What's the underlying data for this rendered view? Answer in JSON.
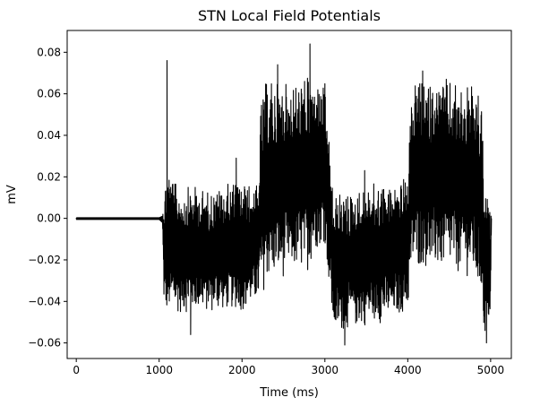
{
  "chart_data": {
    "type": "line",
    "title": "STN Local Field Potentials",
    "xlabel": "Time (ms)",
    "ylabel": "mV",
    "xlim": [
      -110,
      5250
    ],
    "ylim": [
      -0.0675,
      0.0905
    ],
    "xticks": [
      0,
      1000,
      2000,
      3000,
      4000,
      5000
    ],
    "yticks": [
      -0.06,
      -0.04,
      -0.02,
      0.0,
      0.02,
      0.04,
      0.06,
      0.08
    ],
    "xtick_labels": [
      "0",
      "1000",
      "2000",
      "3000",
      "4000",
      "5000"
    ],
    "ytick_labels": [
      "−0.06",
      "−0.04",
      "−0.02",
      "0.00",
      "0.02",
      "0.04",
      "0.06",
      "0.08"
    ],
    "grid": false,
    "legend": "none",
    "series": [
      {
        "color": "#000000",
        "envelope": {
          "x": [
            0,
            1000,
            1040,
            1060,
            1100,
            1200,
            1300,
            1400,
            1500,
            1600,
            1700,
            1800,
            1900,
            2000,
            2100,
            2200,
            2220,
            2300,
            2400,
            2500,
            2600,
            2700,
            2800,
            2900,
            3000,
            3100,
            3120,
            3200,
            3300,
            3400,
            3500,
            3600,
            3700,
            3800,
            3900,
            4000,
            4050,
            4100,
            4200,
            4300,
            4400,
            4500,
            4600,
            4700,
            4800,
            4900,
            4920,
            4950,
            5000,
            5010
          ],
          "max": [
            0.0003,
            0.0003,
            0.001,
            0.016,
            0.028,
            0.017,
            0.015,
            0.016,
            0.015,
            0.014,
            0.015,
            0.016,
            0.019,
            0.018,
            0.017,
            0.016,
            0.055,
            0.068,
            0.067,
            0.066,
            0.066,
            0.068,
            0.069,
            0.066,
            0.065,
            0.012,
            0.012,
            0.013,
            0.013,
            0.014,
            0.016,
            0.017,
            0.018,
            0.016,
            0.019,
            0.02,
            0.062,
            0.068,
            0.066,
            0.066,
            0.068,
            0.067,
            0.066,
            0.065,
            0.064,
            0.055,
            0.012,
            0.012,
            0.003,
            0.0
          ],
          "min": [
            -0.0005,
            -0.0005,
            -0.002,
            -0.048,
            -0.047,
            -0.046,
            -0.046,
            -0.045,
            -0.045,
            -0.046,
            -0.045,
            -0.045,
            -0.044,
            -0.045,
            -0.043,
            -0.04,
            -0.04,
            -0.031,
            -0.03,
            -0.029,
            -0.026,
            -0.027,
            -0.025,
            -0.015,
            -0.012,
            -0.054,
            -0.056,
            -0.055,
            -0.053,
            -0.053,
            -0.052,
            -0.05,
            -0.051,
            -0.049,
            -0.047,
            -0.045,
            -0.025,
            -0.025,
            -0.024,
            -0.026,
            -0.026,
            -0.025,
            -0.027,
            -0.028,
            -0.03,
            -0.04,
            -0.058,
            -0.055,
            -0.048,
            0.0
          ]
        },
        "peaks_high": [
          [
            1095,
            0.076
          ],
          [
            1930,
            0.029
          ],
          [
            2430,
            0.074
          ],
          [
            2820,
            0.084
          ],
          [
            3480,
            0.023
          ],
          [
            4180,
            0.071
          ],
          [
            4900,
            0.031
          ]
        ],
        "peaks_low": [
          [
            1380,
            -0.056
          ],
          [
            1890,
            -0.036
          ],
          [
            3240,
            -0.061
          ],
          [
            4950,
            -0.06
          ]
        ]
      }
    ]
  }
}
